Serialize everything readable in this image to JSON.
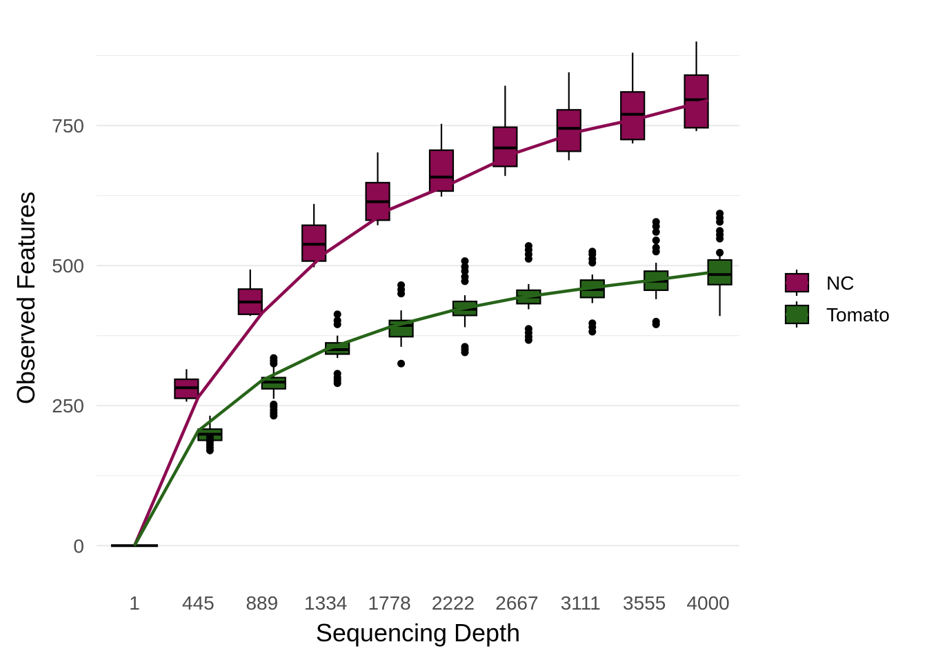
{
  "chart_data": {
    "type": "box",
    "xlabel": "Sequencing Depth",
    "ylabel": "Observed Features",
    "categories": [
      "1",
      "445",
      "889",
      "1334",
      "1778",
      "2222",
      "2667",
      "3111",
      "3555",
      "4000"
    ],
    "ylim": [
      -60,
      915
    ],
    "y_ticks": [
      0,
      250,
      500,
      750
    ],
    "grid": true,
    "legend_position": "right",
    "series": [
      {
        "name": "NC",
        "color": "#8B0A50",
        "boxes": [
          {
            "q1": 0,
            "median": 0,
            "q3": 0,
            "whisker_low": 0,
            "whisker_high": 0,
            "outliers": []
          },
          {
            "q1": 263,
            "median": 282,
            "q3": 297,
            "whisker_low": 257,
            "whisker_high": 315,
            "outliers": []
          },
          {
            "q1": 413,
            "median": 435,
            "q3": 458,
            "whisker_low": 410,
            "whisker_high": 493,
            "outliers": []
          },
          {
            "q1": 508,
            "median": 538,
            "q3": 572,
            "whisker_low": 497,
            "whisker_high": 610,
            "outliers": []
          },
          {
            "q1": 581,
            "median": 614,
            "q3": 648,
            "whisker_low": 572,
            "whisker_high": 702,
            "outliers": []
          },
          {
            "q1": 633,
            "median": 658,
            "q3": 706,
            "whisker_low": 623,
            "whisker_high": 753,
            "outliers": []
          },
          {
            "q1": 677,
            "median": 710,
            "q3": 747,
            "whisker_low": 660,
            "whisker_high": 821,
            "outliers": []
          },
          {
            "q1": 704,
            "median": 745,
            "q3": 778,
            "whisker_low": 688,
            "whisker_high": 845,
            "outliers": []
          },
          {
            "q1": 725,
            "median": 770,
            "q3": 810,
            "whisker_low": 718,
            "whisker_high": 880,
            "outliers": []
          },
          {
            "q1": 746,
            "median": 796,
            "q3": 840,
            "whisker_low": 740,
            "whisker_high": 900,
            "outliers": []
          }
        ],
        "mean_line": [
          0,
          265,
          415,
          523,
          600,
          648,
          702,
          740,
          765,
          795
        ]
      },
      {
        "name": "Tomato",
        "color": "#276419",
        "boxes": [
          {
            "q1": 0,
            "median": 0,
            "q3": 0,
            "whisker_low": 0,
            "whisker_high": 0,
            "outliers": []
          },
          {
            "q1": 188,
            "median": 199,
            "q3": 208,
            "whisker_low": 163,
            "whisker_high": 232,
            "outliers": [
              170,
              175,
              180,
              185,
              190,
              193
            ]
          },
          {
            "q1": 280,
            "median": 292,
            "q3": 300,
            "whisker_low": 262,
            "whisker_high": 320,
            "outliers": [
              232,
              237,
              242,
              248,
              252,
              325,
              330,
              335
            ]
          },
          {
            "q1": 342,
            "median": 350,
            "q3": 362,
            "whisker_low": 335,
            "whisker_high": 375,
            "outliers": [
              290,
              295,
              300,
              307,
              395,
              402,
              413
            ]
          },
          {
            "q1": 373,
            "median": 393,
            "q3": 402,
            "whisker_low": 355,
            "whisker_high": 420,
            "outliers": [
              325,
              450,
              457,
              465
            ]
          },
          {
            "q1": 411,
            "median": 422,
            "q3": 436,
            "whisker_low": 390,
            "whisker_high": 447,
            "outliers": [
              345,
              350,
              355,
              472,
              480,
              490,
              498,
              508
            ]
          },
          {
            "q1": 432,
            "median": 444,
            "q3": 456,
            "whisker_low": 422,
            "whisker_high": 467,
            "outliers": [
              367,
              373,
              380,
              387,
              512,
              520,
              528,
              535
            ]
          },
          {
            "q1": 443,
            "median": 457,
            "q3": 474,
            "whisker_low": 433,
            "whisker_high": 484,
            "outliers": [
              382,
              390,
              397,
              505,
              512,
              520,
              525
            ]
          },
          {
            "q1": 456,
            "median": 472,
            "q3": 490,
            "whisker_low": 440,
            "whisker_high": 505,
            "outliers": [
              395,
              400,
              525,
              532,
              545,
              560,
              570,
              578
            ]
          },
          {
            "q1": 466,
            "median": 484,
            "q3": 510,
            "whisker_low": 410,
            "whisker_high": 520,
            "outliers": [
              523,
              548,
              555,
              562,
              578,
              585,
              593
            ]
          }
        ],
        "mean_line": [
          0,
          205,
          295,
          350,
          390,
          420,
          442,
          458,
          472,
          487
        ]
      }
    ]
  }
}
